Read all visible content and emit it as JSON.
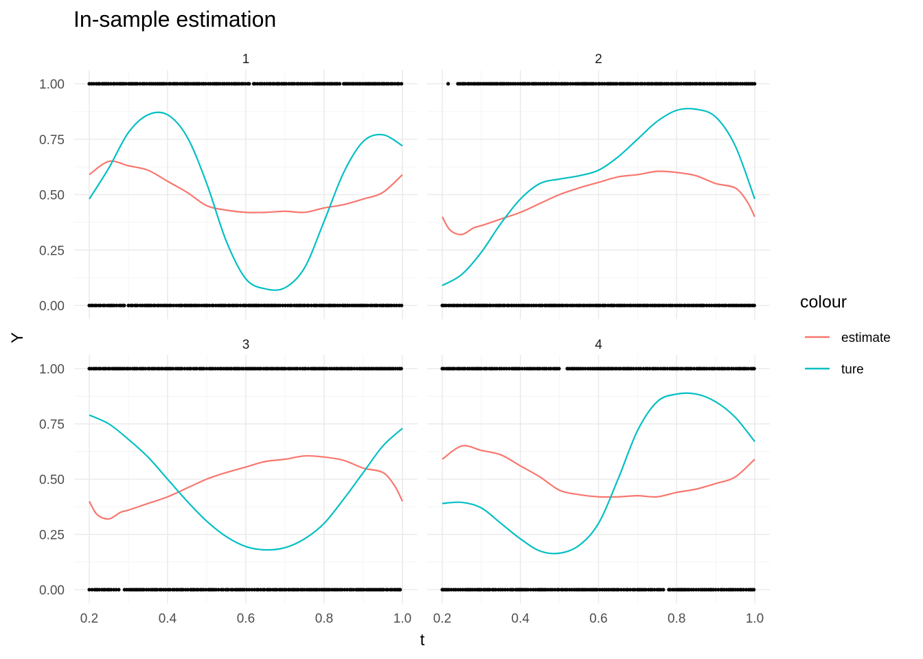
{
  "chart_data": {
    "type": "line",
    "title": "In-sample estimation",
    "xlabel": "t",
    "ylabel": "Y",
    "xlim": [
      0.2,
      1.0
    ],
    "ylim": [
      0,
      1
    ],
    "x_ticks": [
      "0.2",
      "0.4",
      "0.6",
      "0.8",
      "1.0"
    ],
    "y_ticks": [
      "0.00",
      "0.25",
      "0.50",
      "0.75",
      "1.00"
    ],
    "legend": {
      "title": "colour",
      "position": "right",
      "entries": [
        {
          "label": "estimate",
          "color": "#F8766D"
        },
        {
          "label": "ture",
          "color": "#00BFC4"
        }
      ]
    },
    "grid": true,
    "panels": [
      {
        "label": "1",
        "series": [
          {
            "name": "estimate",
            "color": "#F8766D",
            "x": [
              0.2,
              0.25,
              0.3,
              0.35,
              0.4,
              0.45,
              0.5,
              0.55,
              0.6,
              0.65,
              0.7,
              0.75,
              0.8,
              0.85,
              0.9,
              0.95,
              1.0
            ],
            "y": [
              0.59,
              0.65,
              0.63,
              0.61,
              0.56,
              0.51,
              0.45,
              0.43,
              0.42,
              0.42,
              0.425,
              0.42,
              0.44,
              0.455,
              0.48,
              0.51,
              0.59
            ]
          },
          {
            "name": "ture",
            "color": "#00BFC4",
            "x": [
              0.2,
              0.25,
              0.3,
              0.35,
              0.4,
              0.45,
              0.5,
              0.55,
              0.6,
              0.65,
              0.7,
              0.75,
              0.8,
              0.85,
              0.9,
              0.95,
              1.0
            ],
            "y": [
              0.48,
              0.62,
              0.78,
              0.86,
              0.86,
              0.76,
              0.55,
              0.29,
              0.12,
              0.075,
              0.08,
              0.17,
              0.38,
              0.6,
              0.74,
              0.77,
              0.72
            ]
          }
        ],
        "points_y1_x": [
          [
            0.2,
            0.61
          ],
          [
            0.62,
            0.84
          ],
          [
            0.85,
            1.0
          ]
        ],
        "points_y0_x": [
          [
            0.2,
            0.29
          ],
          [
            0.3,
            1.0
          ]
        ]
      },
      {
        "label": "2",
        "series": [
          {
            "name": "estimate",
            "color": "#F8766D",
            "x": [
              0.2,
              0.22,
              0.25,
              0.28,
              0.3,
              0.35,
              0.4,
              0.45,
              0.5,
              0.55,
              0.6,
              0.65,
              0.7,
              0.75,
              0.8,
              0.85,
              0.9,
              0.95,
              0.98,
              1.0
            ],
            "y": [
              0.4,
              0.34,
              0.32,
              0.35,
              0.36,
              0.39,
              0.42,
              0.46,
              0.5,
              0.53,
              0.555,
              0.58,
              0.59,
              0.605,
              0.6,
              0.585,
              0.55,
              0.53,
              0.47,
              0.4
            ]
          },
          {
            "name": "ture",
            "color": "#00BFC4",
            "x": [
              0.2,
              0.25,
              0.3,
              0.35,
              0.4,
              0.45,
              0.5,
              0.55,
              0.6,
              0.65,
              0.7,
              0.75,
              0.8,
              0.85,
              0.9,
              0.95,
              1.0
            ],
            "y": [
              0.09,
              0.14,
              0.24,
              0.37,
              0.48,
              0.55,
              0.57,
              0.585,
              0.61,
              0.67,
              0.75,
              0.83,
              0.88,
              0.885,
              0.85,
              0.72,
              0.48
            ]
          }
        ],
        "points_y1_x": [
          [
            0.215,
            0.215
          ],
          [
            0.24,
            1.0
          ]
        ],
        "points_y0_x": [
          [
            0.2,
            0.7
          ],
          [
            0.7,
            1.0
          ]
        ]
      },
      {
        "label": "3",
        "series": [
          {
            "name": "estimate",
            "color": "#F8766D",
            "x": [
              0.2,
              0.22,
              0.25,
              0.28,
              0.3,
              0.35,
              0.4,
              0.45,
              0.5,
              0.55,
              0.6,
              0.65,
              0.7,
              0.75,
              0.8,
              0.85,
              0.9,
              0.95,
              0.98,
              1.0
            ],
            "y": [
              0.4,
              0.34,
              0.32,
              0.35,
              0.36,
              0.39,
              0.42,
              0.46,
              0.5,
              0.53,
              0.555,
              0.58,
              0.59,
              0.605,
              0.6,
              0.585,
              0.55,
              0.53,
              0.47,
              0.4
            ]
          },
          {
            "name": "ture",
            "color": "#00BFC4",
            "x": [
              0.2,
              0.25,
              0.3,
              0.35,
              0.4,
              0.45,
              0.5,
              0.55,
              0.6,
              0.65,
              0.7,
              0.75,
              0.8,
              0.85,
              0.9,
              0.95,
              1.0
            ],
            "y": [
              0.79,
              0.75,
              0.68,
              0.6,
              0.5,
              0.4,
              0.31,
              0.24,
              0.195,
              0.18,
              0.19,
              0.23,
              0.3,
              0.41,
              0.53,
              0.65,
              0.73
            ]
          }
        ],
        "points_y1_x": [
          [
            0.2,
            1.0
          ]
        ],
        "points_y0_x": [
          [
            0.2,
            0.28
          ],
          [
            0.29,
            1.0
          ]
        ]
      },
      {
        "label": "4",
        "series": [
          {
            "name": "estimate",
            "color": "#F8766D",
            "x": [
              0.2,
              0.25,
              0.3,
              0.35,
              0.4,
              0.45,
              0.5,
              0.55,
              0.6,
              0.65,
              0.7,
              0.75,
              0.8,
              0.85,
              0.9,
              0.95,
              1.0
            ],
            "y": [
              0.59,
              0.65,
              0.63,
              0.61,
              0.56,
              0.51,
              0.45,
              0.43,
              0.42,
              0.42,
              0.425,
              0.42,
              0.44,
              0.455,
              0.48,
              0.51,
              0.59
            ]
          },
          {
            "name": "ture",
            "color": "#00BFC4",
            "x": [
              0.2,
              0.25,
              0.3,
              0.35,
              0.4,
              0.45,
              0.5,
              0.55,
              0.6,
              0.65,
              0.7,
              0.75,
              0.8,
              0.85,
              0.9,
              0.95,
              1.0
            ],
            "y": [
              0.39,
              0.395,
              0.37,
              0.3,
              0.23,
              0.175,
              0.165,
              0.2,
              0.3,
              0.5,
              0.72,
              0.85,
              0.885,
              0.885,
              0.85,
              0.78,
              0.67
            ]
          }
        ],
        "points_y1_x": [
          [
            0.2,
            0.5
          ],
          [
            0.52,
            1.0
          ]
        ],
        "points_y0_x": [
          [
            0.2,
            0.77
          ],
          [
            0.78,
            1.0
          ]
        ]
      }
    ]
  }
}
